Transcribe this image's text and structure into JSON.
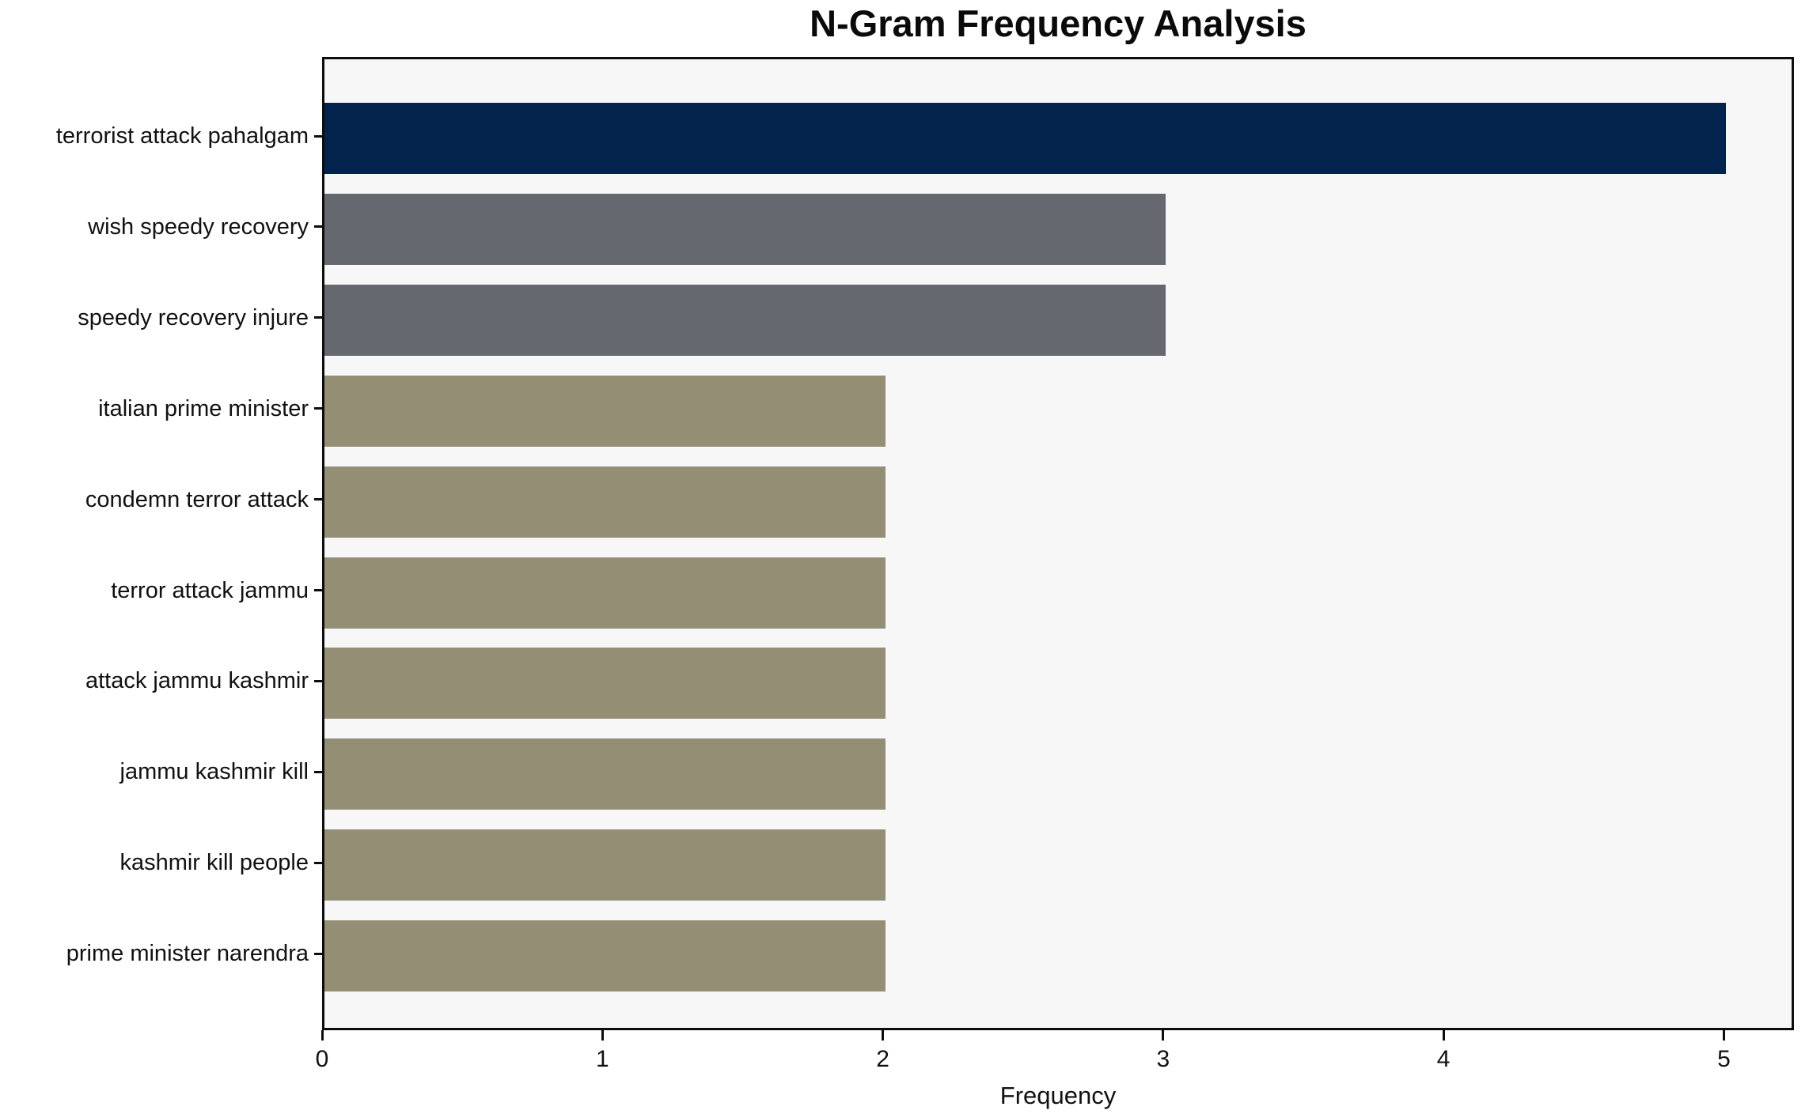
{
  "figure": {
    "background": "#ffffff",
    "plot_background": "#f7f7f8",
    "axis_color": "#0d0d0d",
    "text_color": "#111111"
  },
  "chart_data": {
    "type": "bar",
    "orientation": "horizontal",
    "title": "N-Gram Frequency Analysis",
    "xlabel": "Frequency",
    "ylabel": "",
    "categories": [
      "terrorist attack pahalgam",
      "wish speedy recovery",
      "speedy recovery injure",
      "italian prime minister",
      "condemn terror attack",
      "terror attack jammu",
      "attack jammu kashmir",
      "jammu kashmir kill",
      "kashmir kill people",
      "prime minister narendra"
    ],
    "values": [
      5,
      3,
      3,
      2,
      2,
      2,
      2,
      2,
      2,
      2
    ],
    "bar_colors": [
      "#03234d",
      "#65686f",
      "#65686f",
      "#948e75",
      "#948e75",
      "#948e75",
      "#948e75",
      "#948e75",
      "#948e75",
      "#948e75"
    ],
    "xlim": [
      0,
      5.25
    ],
    "xticks": [
      0,
      1,
      2,
      3,
      4,
      5
    ],
    "grid": false,
    "legend": null
  }
}
